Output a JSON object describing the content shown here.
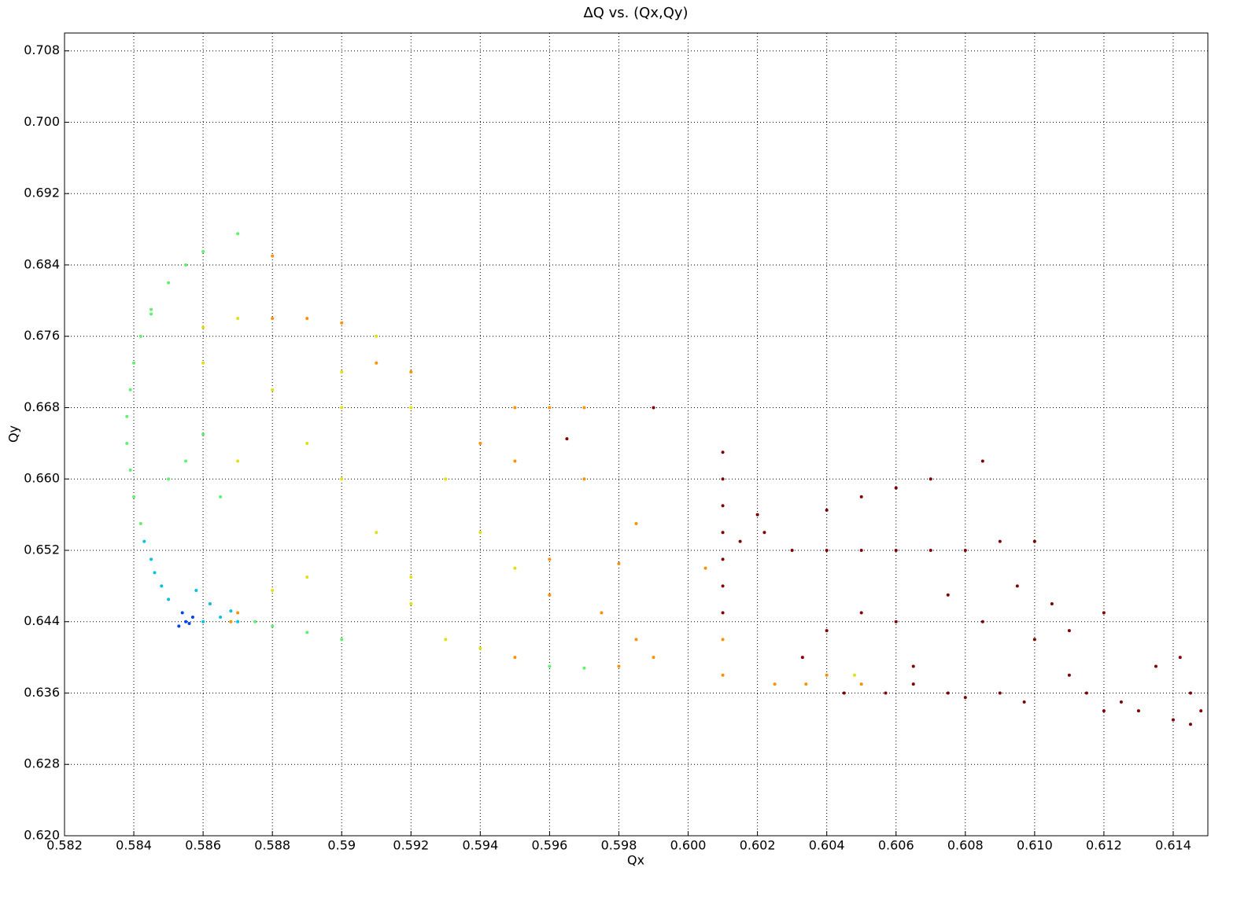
{
  "chart_data": {
    "type": "scatter",
    "title": "ΔQ vs. (Qx,Qy)",
    "x_label": "Qx",
    "y_label": "Qy",
    "xlim": [
      0.582,
      0.615
    ],
    "ylim": [
      0.62,
      0.71
    ],
    "grid": true,
    "xticks": [
      0.582,
      0.584,
      0.586,
      0.588,
      0.59,
      0.592,
      0.594,
      0.596,
      0.598,
      {
        "value": 0.6,
        "label": "0.600"
      },
      0.602,
      0.604,
      0.606,
      0.608,
      {
        "value": 0.61,
        "label": "0.610"
      },
      0.612,
      0.614
    ],
    "yticks": [
      {
        "value": 0.62,
        "label": "0.620"
      },
      0.628,
      0.636,
      0.644,
      0.652,
      {
        "value": 0.66,
        "label": "0.660"
      },
      0.668,
      0.676,
      0.684,
      0.692,
      {
        "value": 0.7,
        "label": "0.700"
      },
      0.708
    ],
    "series": [
      {
        "color": "#0040ff",
        "x": [
          0.5853,
          0.5855,
          0.5857,
          0.5856,
          0.5854
        ],
        "y": [
          0.6435,
          0.644,
          0.6445,
          0.6438,
          0.645
        ]
      },
      {
        "color": "#00c0e0",
        "x": [
          0.585,
          0.5848,
          0.5846,
          0.586,
          0.5865,
          0.5862,
          0.5845,
          0.5843,
          0.587,
          0.5858,
          0.5868
        ],
        "y": [
          0.6465,
          0.648,
          0.6495,
          0.644,
          0.6445,
          0.646,
          0.651,
          0.653,
          0.644,
          0.6475,
          0.6452
        ]
      },
      {
        "color": "#60f070",
        "x": [
          0.5842,
          0.584,
          0.5839,
          0.5838,
          0.5838,
          0.5839,
          0.584,
          0.5842,
          0.5845,
          0.585,
          0.5855,
          0.586,
          0.587,
          0.5875,
          0.588,
          0.589,
          0.59,
          0.585,
          0.5855,
          0.586,
          0.596,
          0.597,
          0.5865,
          0.5845
        ],
        "y": [
          0.655,
          0.658,
          0.661,
          0.664,
          0.667,
          0.67,
          0.673,
          0.676,
          0.679,
          0.682,
          0.684,
          0.6855,
          0.6875,
          0.644,
          0.6435,
          0.6428,
          0.642,
          0.66,
          0.662,
          0.665,
          0.639,
          0.6388,
          0.658,
          0.6785
        ]
      },
      {
        "color": "#e0e010",
        "x": [
          0.59,
          0.588,
          0.587,
          0.586,
          0.59,
          0.592,
          0.591,
          0.592,
          0.593,
          0.594,
          0.589,
          0.588,
          0.592,
          0.595,
          0.59,
          0.589,
          0.593,
          0.594,
          0.587,
          0.591,
          0.586,
          0.6048
        ],
        "y": [
          0.66,
          0.67,
          0.678,
          0.677,
          0.668,
          0.668,
          0.654,
          0.646,
          0.642,
          0.641,
          0.649,
          0.6475,
          0.649,
          0.65,
          0.672,
          0.664,
          0.66,
          0.654,
          0.662,
          0.676,
          0.673,
          0.638
        ]
      },
      {
        "color": "#ff9000",
        "x": [
          0.5868,
          0.587,
          0.595,
          0.596,
          0.597,
          0.588,
          0.589,
          0.59,
          0.591,
          0.592,
          0.596,
          0.598,
          0.595,
          0.597,
          0.5985,
          0.598,
          0.5985,
          0.599,
          0.596,
          0.5975,
          0.594,
          0.6005,
          0.601,
          0.601,
          0.6025,
          0.6034,
          0.604,
          0.605,
          0.588,
          0.595
        ],
        "y": [
          0.644,
          0.645,
          0.668,
          0.668,
          0.668,
          0.678,
          0.678,
          0.6775,
          0.673,
          0.672,
          0.651,
          0.6505,
          0.662,
          0.66,
          0.655,
          0.639,
          0.642,
          0.64,
          0.647,
          0.645,
          0.664,
          0.65,
          0.638,
          0.642,
          0.637,
          0.637,
          0.638,
          0.637,
          0.685,
          0.64
        ]
      },
      {
        "color": "#800000",
        "x": [
          0.601,
          0.601,
          0.601,
          0.601,
          0.601,
          0.601,
          0.601,
          0.6015,
          0.602,
          0.603,
          0.604,
          0.605,
          0.606,
          0.607,
          0.608,
          0.609,
          0.61,
          0.606,
          0.605,
          0.607,
          0.6033,
          0.604,
          0.605,
          0.606,
          0.6057,
          0.6065,
          0.6075,
          0.608,
          0.609,
          0.6097,
          0.61,
          0.611,
          0.6105,
          0.612,
          0.6125,
          0.613,
          0.614,
          0.6145,
          0.6148,
          0.6142,
          0.6145,
          0.6135,
          0.6115,
          0.611,
          0.6085,
          0.6095,
          0.6075,
          0.6065,
          0.6045,
          0.599,
          0.5965,
          0.612,
          0.6022,
          0.604,
          0.6085
        ],
        "y": [
          0.663,
          0.66,
          0.657,
          0.654,
          0.651,
          0.648,
          0.645,
          0.653,
          0.656,
          0.652,
          0.652,
          0.652,
          0.652,
          0.652,
          0.652,
          0.653,
          0.653,
          0.659,
          0.658,
          0.66,
          0.64,
          0.643,
          0.645,
          0.644,
          0.636,
          0.637,
          0.636,
          0.6355,
          0.636,
          0.635,
          0.642,
          0.643,
          0.646,
          0.634,
          0.635,
          0.634,
          0.633,
          0.6325,
          0.634,
          0.64,
          0.636,
          0.639,
          0.636,
          0.638,
          0.644,
          0.648,
          0.647,
          0.639,
          0.636,
          0.668,
          0.6645,
          0.645,
          0.654,
          0.6565,
          0.662
        ]
      }
    ]
  }
}
